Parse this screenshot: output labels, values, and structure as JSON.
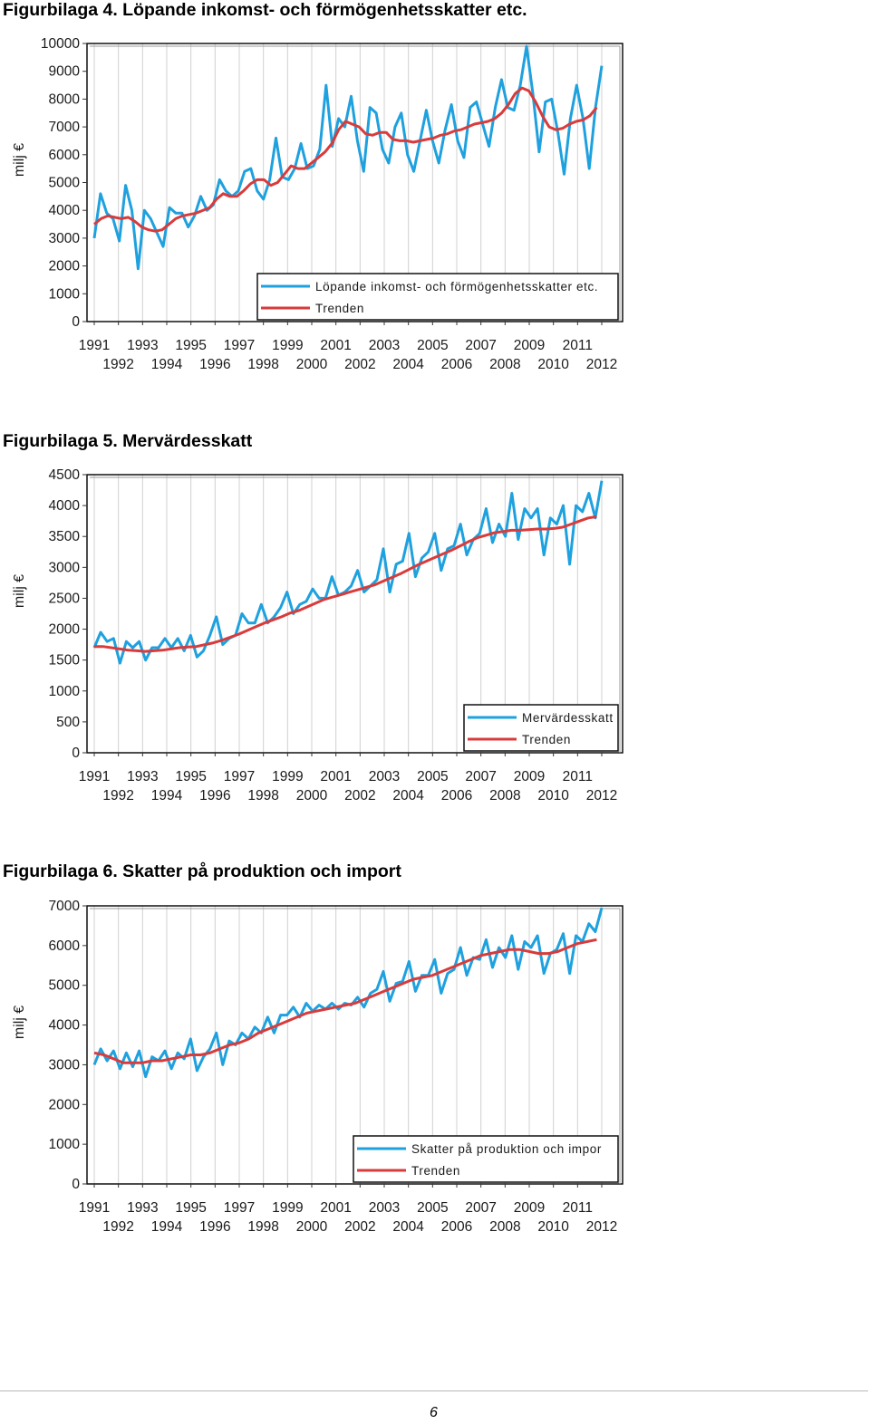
{
  "figures": [
    {
      "title": "Figurbilaga 4. Löpande inkomst- och förmögenhetsskatter etc."
    },
    {
      "title": "Figurbilaga 5. Mervärdesskatt"
    },
    {
      "title": "Figurbilaga 6. Skatter på produktion och import"
    }
  ],
  "colors": {
    "series": "#1ea1de",
    "trend": "#d83b3b",
    "grid": "#d0d0d0",
    "frame": "#111111"
  },
  "chart_data": [
    {
      "type": "line",
      "ylabel": "milj €",
      "ylim": [
        0,
        10000
      ],
      "yticks": [
        0,
        1000,
        2000,
        3000,
        4000,
        5000,
        6000,
        7000,
        8000,
        9000,
        10000
      ],
      "x_ticks_row1": [
        "1991",
        "1993",
        "1995",
        "1997",
        "1999",
        "2001",
        "2003",
        "2005",
        "2007",
        "2009",
        "2011"
      ],
      "x_ticks_row2": [
        "1992",
        "1994",
        "1996",
        "1998",
        "2000",
        "2002",
        "2004",
        "2006",
        "2008",
        "2010",
        "2012"
      ],
      "x_range": [
        "1991",
        "2012"
      ],
      "legend_position": "bottom-right",
      "grid": true,
      "series": [
        {
          "name": "Löpande inkomst- och förmögenhetsskatter etc.",
          "values": [
            3000,
            4600,
            3900,
            3700,
            2900,
            4900,
            4000,
            1900,
            4000,
            3700,
            3200,
            2700,
            4100,
            3900,
            3900,
            3400,
            3800,
            4500,
            4000,
            4200,
            5100,
            4700,
            4500,
            4700,
            5400,
            5500,
            4700,
            4400,
            5100,
            6600,
            5200,
            5100,
            5500,
            6400,
            5500,
            5600,
            6200,
            8500,
            6300,
            7300,
            7000,
            8100,
            6500,
            5400,
            7700,
            7500,
            6200,
            5700,
            7000,
            7500,
            6000,
            5400,
            6500,
            7600,
            6500,
            5700,
            6900,
            7800,
            6500,
            5900,
            7700,
            7900,
            7100,
            6300,
            7700,
            8700,
            7700,
            7600,
            8500,
            9900,
            8200,
            6100,
            7900,
            8000,
            6800,
            5300,
            7300,
            8500,
            7300,
            5500,
            7700,
            9200
          ]
        },
        {
          "name": "Trenden",
          "values": [
            3500,
            3700,
            3800,
            3750,
            3700,
            3750,
            3600,
            3400,
            3300,
            3250,
            3300,
            3500,
            3700,
            3800,
            3850,
            3900,
            4000,
            4100,
            4400,
            4600,
            4500,
            4500,
            4700,
            4950,
            5100,
            5100,
            4900,
            5000,
            5300,
            5600,
            5500,
            5500,
            5700,
            5900,
            6100,
            6400,
            6900,
            7200,
            7100,
            7000,
            6750,
            6700,
            6800,
            6800,
            6550,
            6500,
            6500,
            6450,
            6500,
            6550,
            6600,
            6700,
            6750,
            6850,
            6900,
            7000,
            7100,
            7150,
            7200,
            7300,
            7500,
            7800,
            8200,
            8400,
            8300,
            7900,
            7400,
            7000,
            6900,
            6950,
            7100,
            7200,
            7250,
            7400,
            7700
          ]
        }
      ]
    },
    {
      "type": "line",
      "ylabel": "milj €",
      "ylim": [
        0,
        4500
      ],
      "yticks": [
        0,
        500,
        1000,
        1500,
        2000,
        2500,
        3000,
        3500,
        4000,
        4500
      ],
      "x_ticks_row1": [
        "1991",
        "1993",
        "1995",
        "1997",
        "1999",
        "2001",
        "2003",
        "2005",
        "2007",
        "2009",
        "2011"
      ],
      "x_ticks_row2": [
        "1992",
        "1994",
        "1996",
        "1998",
        "2000",
        "2002",
        "2004",
        "2006",
        "2008",
        "2010",
        "2012"
      ],
      "x_range": [
        "1991",
        "2012"
      ],
      "legend_position": "bottom-right",
      "grid": true,
      "series": [
        {
          "name": "Mervärdesskatt",
          "values": [
            1700,
            1950,
            1800,
            1850,
            1450,
            1800,
            1700,
            1800,
            1500,
            1700,
            1700,
            1850,
            1700,
            1850,
            1650,
            1900,
            1550,
            1650,
            1900,
            2200,
            1750,
            1850,
            1900,
            2250,
            2100,
            2100,
            2400,
            2100,
            2200,
            2350,
            2600,
            2250,
            2400,
            2450,
            2650,
            2500,
            2500,
            2850,
            2550,
            2600,
            2700,
            2950,
            2600,
            2700,
            2800,
            3300,
            2600,
            3050,
            3100,
            3550,
            2850,
            3150,
            3250,
            3550,
            2950,
            3300,
            3350,
            3700,
            3200,
            3450,
            3550,
            3950,
            3400,
            3700,
            3500,
            4200,
            3450,
            3950,
            3800,
            3950,
            3200,
            3800,
            3700,
            4000,
            3050,
            4000,
            3900,
            4200,
            3800,
            4400
          ]
        },
        {
          "name": "Trenden",
          "values": [
            1720,
            1720,
            1700,
            1680,
            1660,
            1650,
            1640,
            1650,
            1660,
            1680,
            1700,
            1710,
            1720,
            1750,
            1780,
            1820,
            1870,
            1920,
            1980,
            2040,
            2100,
            2150,
            2200,
            2260,
            2300,
            2360,
            2420,
            2480,
            2520,
            2560,
            2600,
            2640,
            2680,
            2720,
            2780,
            2840,
            2900,
            2970,
            3040,
            3100,
            3160,
            3220,
            3280,
            3350,
            3420,
            3480,
            3520,
            3560,
            3580,
            3600,
            3600,
            3610,
            3620,
            3620,
            3630,
            3650,
            3700,
            3750,
            3800,
            3820
          ]
        }
      ]
    },
    {
      "type": "line",
      "ylabel": "milj €",
      "ylim": [
        0,
        7000
      ],
      "yticks": [
        0,
        1000,
        2000,
        3000,
        4000,
        5000,
        6000,
        7000
      ],
      "x_ticks_row1": [
        "1991",
        "1993",
        "1995",
        "1997",
        "1999",
        "2001",
        "2003",
        "2005",
        "2007",
        "2009",
        "2011"
      ],
      "x_ticks_row2": [
        "1992",
        "1994",
        "1996",
        "1998",
        "2000",
        "2002",
        "2004",
        "2006",
        "2008",
        "2010",
        "2012"
      ],
      "x_range": [
        "1991",
        "2012"
      ],
      "legend_position": "bottom-right",
      "grid": true,
      "series": [
        {
          "name": "Skatter på produktion och impor",
          "values": [
            3000,
            3400,
            3100,
            3350,
            2900,
            3300,
            2950,
            3350,
            2700,
            3200,
            3100,
            3350,
            2900,
            3300,
            3150,
            3650,
            2850,
            3200,
            3400,
            3800,
            3000,
            3600,
            3500,
            3800,
            3650,
            3950,
            3800,
            4200,
            3800,
            4250,
            4250,
            4450,
            4200,
            4550,
            4350,
            4500,
            4400,
            4550,
            4400,
            4550,
            4500,
            4700,
            4450,
            4800,
            4900,
            5350,
            4600,
            5050,
            5100,
            5600,
            4850,
            5250,
            5250,
            5650,
            4800,
            5300,
            5400,
            5950,
            5250,
            5700,
            5650,
            6150,
            5450,
            5950,
            5700,
            6250,
            5400,
            6100,
            5950,
            6250,
            5300,
            5800,
            5900,
            6300,
            5300,
            6250,
            6100,
            6550,
            6350,
            6950
          ]
        },
        {
          "name": "Trenden",
          "values": [
            3300,
            3250,
            3150,
            3050,
            3050,
            3050,
            3100,
            3100,
            3150,
            3200,
            3250,
            3250,
            3300,
            3400,
            3500,
            3550,
            3650,
            3800,
            3900,
            4000,
            4100,
            4200,
            4300,
            4350,
            4400,
            4450,
            4500,
            4550,
            4650,
            4750,
            4850,
            4950,
            5050,
            5150,
            5200,
            5250,
            5350,
            5450,
            5550,
            5650,
            5750,
            5800,
            5850,
            5900,
            5900,
            5850,
            5800,
            5800,
            5850,
            5950,
            6050,
            6100,
            6150
          ]
        }
      ]
    }
  ]
}
